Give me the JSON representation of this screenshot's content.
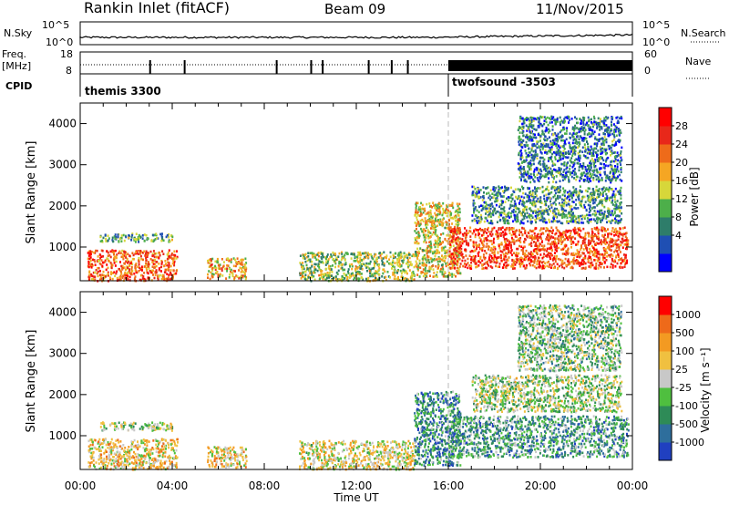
{
  "header": {
    "station": "Rankin Inlet (fitACF)",
    "beam": "Beam 09",
    "date": "11/Nov/2015"
  },
  "strip": {
    "left_labels": [
      "N.Sky",
      "Freq.",
      "[MHz]",
      "CPID"
    ],
    "right_labels": [
      "N.Search",
      "Nave"
    ],
    "nsky_ticks": [
      "10^5",
      "10^0"
    ],
    "freq_ticks": [
      "18",
      "8"
    ],
    "nave_ticks": [
      "60",
      "0"
    ],
    "cpid_segments": [
      {
        "label": "themis 3300",
        "start_hour": 0
      },
      {
        "label": "twofsound -3503",
        "start_hour": 16
      }
    ]
  },
  "panels": [
    {
      "id": "power",
      "ylabel": "Slant Range [km]",
      "colorbar_label": "Power [dB]",
      "colorbar_ticks": [
        "28",
        "24",
        "20",
        "16",
        "12",
        "8",
        "4"
      ],
      "colors": [
        "#0000ff",
        "#1f4fb3",
        "#2e7d6a",
        "#4daf4a",
        "#d7d73a",
        "#f5a623",
        "#ee6b1a",
        "#e8281a",
        "#ff0000"
      ]
    },
    {
      "id": "velocity",
      "ylabel": "Slant Range [km]",
      "colorbar_label": "Velocity [m s⁻¹]",
      "colorbar_ticks": [
        "1000",
        "500",
        "100",
        "25",
        "-25",
        "-100",
        "-500",
        "-1000"
      ],
      "colors": [
        "#2040c0",
        "#2e6e9c",
        "#2e8b57",
        "#4fbf3f",
        "#c8c8c8",
        "#f0c040",
        "#f39a22",
        "#ee6a1a",
        "#ff0000"
      ]
    }
  ],
  "chart_data": [
    {
      "type": "heatmap",
      "title": "Power",
      "xlabel": "Time UT",
      "ylabel": "Slant Range [km]",
      "x_ticks": [
        "00:00",
        "04:00",
        "08:00",
        "12:00",
        "16:00",
        "20:00",
        "00:00"
      ],
      "y_ticks": [
        1000,
        2000,
        3000,
        4000
      ],
      "xlim_hours": [
        0,
        24
      ],
      "ylim_km": [
        180,
        4500
      ],
      "colorbar": "Power [dB]",
      "color_range": [
        0,
        30
      ],
      "echo_regions": [
        {
          "t0": 0.3,
          "t1": 4.2,
          "r0": 200,
          "r1": 950,
          "level": 0.75
        },
        {
          "t0": 0.8,
          "t1": 4.0,
          "r0": 1150,
          "r1": 1350,
          "level": 0.35
        },
        {
          "t0": 5.5,
          "t1": 7.2,
          "r0": 250,
          "r1": 750,
          "level": 0.6
        },
        {
          "t0": 9.5,
          "t1": 14.5,
          "r0": 200,
          "r1": 900,
          "level": 0.45
        },
        {
          "t0": 14.5,
          "t1": 16.5,
          "r0": 300,
          "r1": 2100,
          "level": 0.55
        },
        {
          "t0": 16,
          "t1": 23.8,
          "r0": 500,
          "r1": 1500,
          "level": 0.8
        },
        {
          "t0": 17,
          "t1": 23.5,
          "r0": 1600,
          "r1": 2500,
          "level": 0.3
        },
        {
          "t0": 19,
          "t1": 23.5,
          "r0": 2600,
          "r1": 4200,
          "level": 0.25
        }
      ]
    },
    {
      "type": "heatmap",
      "title": "Velocity",
      "xlabel": "Time UT",
      "ylabel": "Slant Range [km]",
      "x_ticks": [
        "00:00",
        "04:00",
        "08:00",
        "12:00",
        "16:00",
        "20:00",
        "00:00"
      ],
      "y_ticks": [
        1000,
        2000,
        3000,
        4000
      ],
      "xlim_hours": [
        0,
        24
      ],
      "ylim_km": [
        180,
        4500
      ],
      "colorbar": "Velocity [m s⁻¹]",
      "color_range": [
        -1000,
        1000
      ],
      "echo_regions": [
        {
          "t0": 0.3,
          "t1": 4.2,
          "r0": 200,
          "r1": 950,
          "level": 0.6
        },
        {
          "t0": 0.8,
          "t1": 4.0,
          "r0": 1150,
          "r1": 1350,
          "level": 0.45
        },
        {
          "t0": 5.5,
          "t1": 7.2,
          "r0": 250,
          "r1": 750,
          "level": 0.6
        },
        {
          "t0": 9.5,
          "t1": 14.5,
          "r0": 200,
          "r1": 900,
          "level": 0.55
        },
        {
          "t0": 14.5,
          "t1": 16.5,
          "r0": 300,
          "r1": 2100,
          "level": 0.25
        },
        {
          "t0": 16,
          "t1": 23.8,
          "r0": 500,
          "r1": 1500,
          "level": 0.3
        },
        {
          "t0": 17,
          "t1": 23.5,
          "r0": 1600,
          "r1": 2500,
          "level": 0.45
        },
        {
          "t0": 19,
          "t1": 23.5,
          "r0": 2600,
          "r1": 4200,
          "level": 0.4
        }
      ]
    }
  ]
}
